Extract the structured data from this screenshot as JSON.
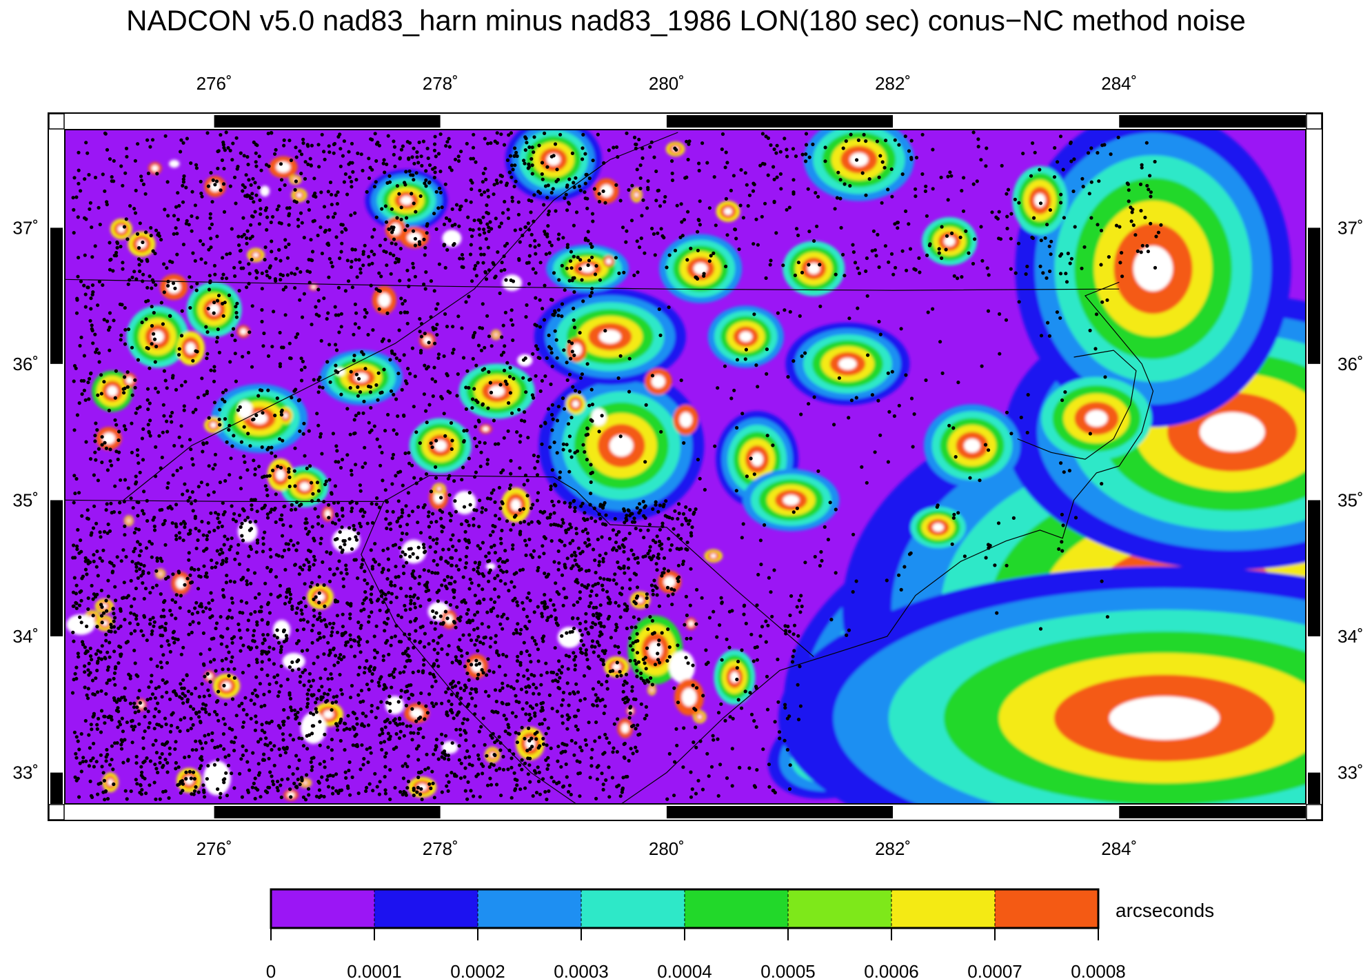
{
  "title": "NADCON v5.0 nad83_harn minus nad83_1986 LON(180 sec) conus−NC method noise",
  "lon_ticks": [
    {
      "value": 276,
      "label": "276˚"
    },
    {
      "value": 278,
      "label": "278˚"
    },
    {
      "value": 280,
      "label": "280˚"
    },
    {
      "value": 282,
      "label": "282˚"
    },
    {
      "value": 284,
      "label": "284˚"
    }
  ],
  "lat_ticks": [
    {
      "value": 33,
      "label": "33˚"
    },
    {
      "value": 34,
      "label": "34˚"
    },
    {
      "value": 35,
      "label": "35˚"
    },
    {
      "value": 36,
      "label": "36˚"
    },
    {
      "value": 37,
      "label": "37˚"
    }
  ],
  "extent": {
    "lon_min": 274.68,
    "lon_max": 285.65,
    "lat_min": 32.77,
    "lat_max": 37.72
  },
  "colorbar": {
    "units": "arcseconds",
    "labels": [
      "0",
      "0.0001",
      "0.0002",
      "0.0003",
      "0.0004",
      "0.0005",
      "0.0006",
      "0.0007",
      "0.0008"
    ],
    "colors": [
      "#9b16f5",
      "#1c12f0",
      "#1e8ff2",
      "#2ee8c8",
      "#22d82a",
      "#7ee81a",
      "#f4ea14",
      "#f45a14"
    ]
  },
  "field_colors": {
    "background": "#9b16f5",
    "no_data": "#ffffff",
    "stations": "#000000",
    "boundaries": "#000000"
  }
}
